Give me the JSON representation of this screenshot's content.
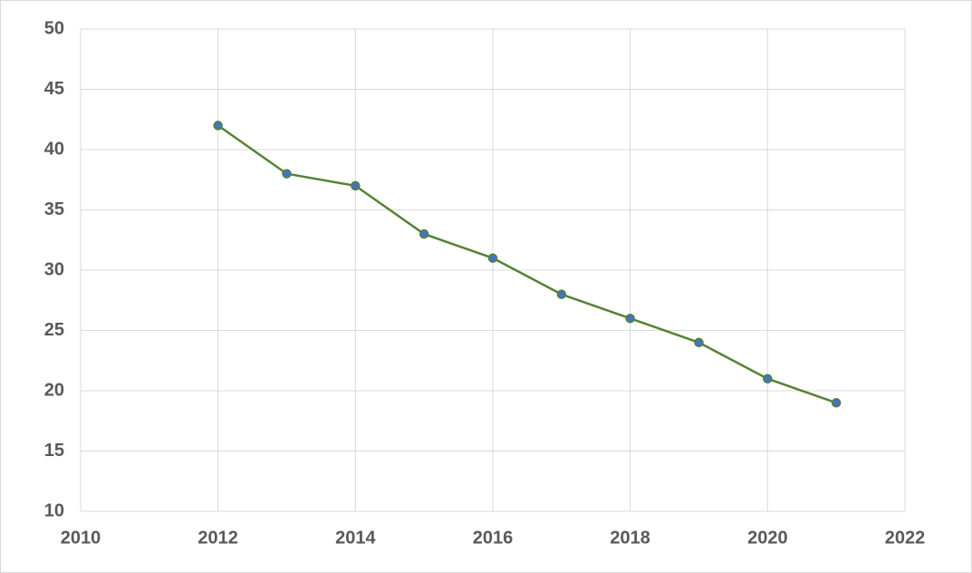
{
  "chart_data": {
    "type": "line",
    "x": [
      2012,
      2013,
      2014,
      2015,
      2016,
      2017,
      2018,
      2019,
      2020,
      2021
    ],
    "series": [
      {
        "color": "#548235",
        "marker_color": "#4472c4",
        "values": [
          42,
          38,
          37,
          33,
          31,
          28,
          26,
          24,
          21,
          19
        ]
      }
    ],
    "xlim": [
      2010,
      2022
    ],
    "xticks": [
      2010,
      2012,
      2014,
      2016,
      2018,
      2020,
      2022
    ],
    "ylim": [
      10,
      50
    ],
    "yticks": [
      10,
      15,
      20,
      25,
      30,
      35,
      40,
      45,
      50
    ],
    "grid": true
  }
}
